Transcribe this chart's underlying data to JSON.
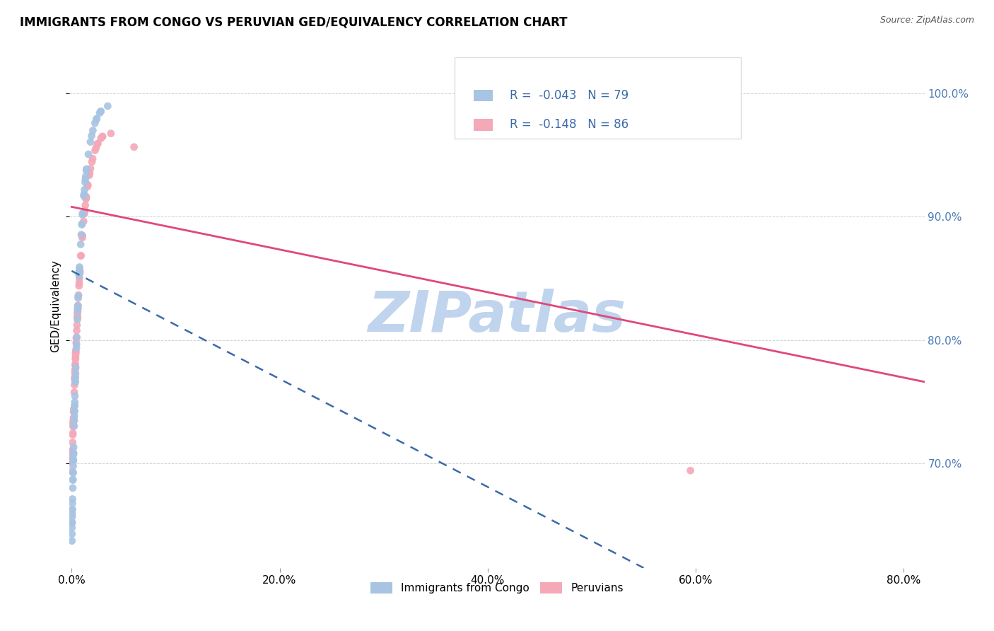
{
  "title": "IMMIGRANTS FROM CONGO VS PERUVIAN GED/EQUIVALENCY CORRELATION CHART",
  "source": "Source: ZipAtlas.com",
  "ylabel_label": "GED/Equivalency",
  "xmin": -0.002,
  "xmax": 0.82,
  "ymin": 0.615,
  "ymax": 1.04,
  "congo_R": -0.043,
  "congo_N": 79,
  "peru_R": -0.148,
  "peru_N": 86,
  "legend_labels": [
    "Immigrants from Congo",
    "Peruvians"
  ],
  "congo_color": "#a8c4e2",
  "peru_color": "#f4a8b8",
  "congo_line_color": "#3a6aaa",
  "peru_line_color": "#e04878",
  "watermark": "ZIPatlas",
  "watermark_color": "#c0d4ee",
  "xtick_vals": [
    0.0,
    0.2,
    0.4,
    0.6,
    0.8
  ],
  "ytick_vals": [
    0.7,
    0.8,
    0.9,
    1.0
  ],
  "congo_line_x0": 0.0,
  "congo_line_x1": 0.55,
  "congo_line_y0": 0.856,
  "congo_line_y1": 0.615,
  "peru_line_x0": 0.0,
  "peru_line_x1": 0.82,
  "peru_line_y0": 0.908,
  "peru_line_y1": 0.766
}
